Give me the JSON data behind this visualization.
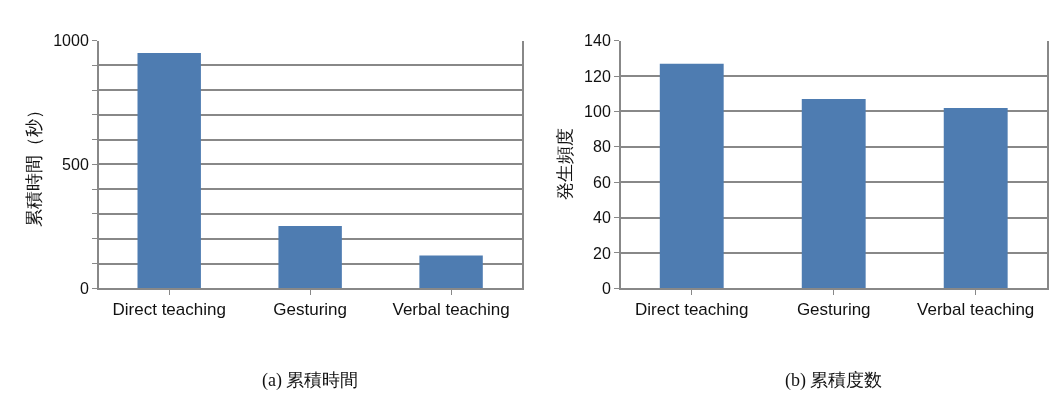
{
  "chart_data": [
    {
      "type": "bar",
      "categories": [
        "Direct teaching",
        "Gesturing",
        "Verbal teaching"
      ],
      "values": [
        950,
        252,
        132
      ],
      "color": "#4e7cb1",
      "ylabel": "累積時間（秒）",
      "xlabel": "(a) 累積時間",
      "ylim": [
        0,
        1000
      ],
      "yticks": [
        0,
        {
          "value": 100,
          "label": null
        },
        {
          "value": 200,
          "label": null
        },
        {
          "value": 300,
          "label": null
        },
        {
          "value": 400,
          "label": null
        },
        500,
        {
          "value": 600,
          "label": null
        },
        {
          "value": 700,
          "label": null
        },
        {
          "value": 800,
          "label": null
        },
        {
          "value": 900,
          "label": null
        },
        1000
      ],
      "grid": "y",
      "legend": false
    },
    {
      "type": "bar",
      "categories": [
        "Direct teaching",
        "Gesturing",
        "Verbal teaching"
      ],
      "values": [
        127,
        107,
        102
      ],
      "color": "#4e7cb1",
      "ylabel": "発生頻度",
      "xlabel": "(b) 累積度数",
      "ylim": [
        0,
        140
      ],
      "yticks": [
        0,
        20,
        40,
        60,
        80,
        100,
        120,
        140
      ],
      "grid": "y",
      "legend": false
    }
  ]
}
